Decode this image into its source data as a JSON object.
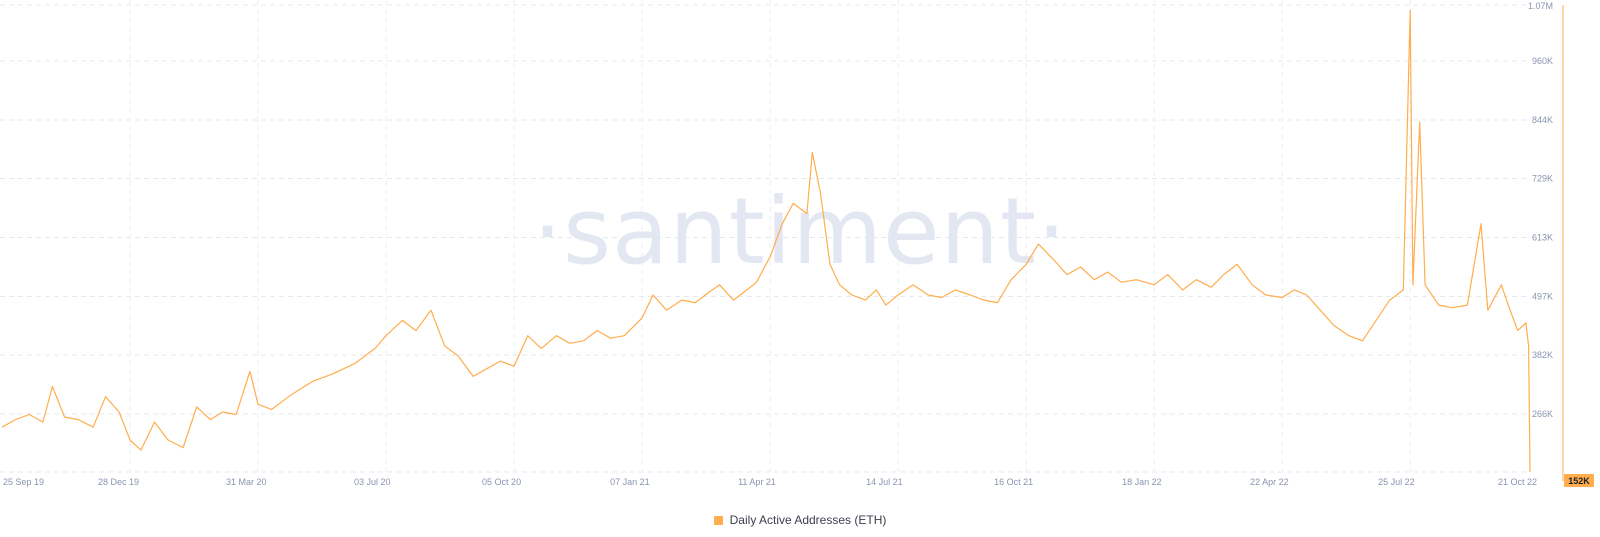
{
  "watermark": "·santiment·",
  "chart_data": {
    "type": "line",
    "series": [
      {
        "name": "Daily Active Addresses (ETH)",
        "color": "#ffad4d",
        "points": [
          [
            "2019-09-25",
            240000
          ],
          [
            "2019-10-05",
            255000
          ],
          [
            "2019-10-15",
            265000
          ],
          [
            "2019-10-25",
            250000
          ],
          [
            "2019-11-01",
            320000
          ],
          [
            "2019-11-10",
            260000
          ],
          [
            "2019-11-20",
            255000
          ],
          [
            "2019-12-01",
            240000
          ],
          [
            "2019-12-10",
            300000
          ],
          [
            "2019-12-20",
            270000
          ],
          [
            "2019-12-28",
            215000
          ],
          [
            "2020-01-05",
            195000
          ],
          [
            "2020-01-15",
            250000
          ],
          [
            "2020-01-25",
            215000
          ],
          [
            "2020-02-05",
            200000
          ],
          [
            "2020-02-15",
            280000
          ],
          [
            "2020-02-25",
            255000
          ],
          [
            "2020-03-05",
            270000
          ],
          [
            "2020-03-15",
            265000
          ],
          [
            "2020-03-25",
            350000
          ],
          [
            "2020-03-31",
            285000
          ],
          [
            "2020-04-10",
            275000
          ],
          [
            "2020-04-25",
            305000
          ],
          [
            "2020-05-10",
            330000
          ],
          [
            "2020-05-25",
            345000
          ],
          [
            "2020-06-10",
            365000
          ],
          [
            "2020-06-25",
            395000
          ],
          [
            "2020-07-03",
            420000
          ],
          [
            "2020-07-15",
            450000
          ],
          [
            "2020-07-25",
            430000
          ],
          [
            "2020-08-05",
            470000
          ],
          [
            "2020-08-15",
            400000
          ],
          [
            "2020-08-25",
            380000
          ],
          [
            "2020-09-05",
            340000
          ],
          [
            "2020-09-15",
            355000
          ],
          [
            "2020-09-25",
            370000
          ],
          [
            "2020-10-05",
            360000
          ],
          [
            "2020-10-15",
            420000
          ],
          [
            "2020-10-25",
            395000
          ],
          [
            "2020-11-05",
            420000
          ],
          [
            "2020-11-15",
            405000
          ],
          [
            "2020-11-25",
            410000
          ],
          [
            "2020-12-05",
            430000
          ],
          [
            "2020-12-15",
            415000
          ],
          [
            "2020-12-25",
            420000
          ],
          [
            "2021-01-07",
            455000
          ],
          [
            "2021-01-15",
            500000
          ],
          [
            "2021-01-25",
            470000
          ],
          [
            "2021-02-05",
            490000
          ],
          [
            "2021-02-15",
            485000
          ],
          [
            "2021-02-25",
            505000
          ],
          [
            "2021-03-05",
            520000
          ],
          [
            "2021-03-15",
            490000
          ],
          [
            "2021-03-25",
            510000
          ],
          [
            "2021-04-01",
            525000
          ],
          [
            "2021-04-11",
            575000
          ],
          [
            "2021-04-20",
            640000
          ],
          [
            "2021-04-28",
            680000
          ],
          [
            "2021-05-08",
            660000
          ],
          [
            "2021-05-12",
            780000
          ],
          [
            "2021-05-18",
            700000
          ],
          [
            "2021-05-25",
            560000
          ],
          [
            "2021-06-01",
            520000
          ],
          [
            "2021-06-10",
            500000
          ],
          [
            "2021-06-20",
            490000
          ],
          [
            "2021-06-28",
            510000
          ],
          [
            "2021-07-05",
            480000
          ],
          [
            "2021-07-14",
            500000
          ],
          [
            "2021-07-25",
            520000
          ],
          [
            "2021-08-05",
            500000
          ],
          [
            "2021-08-15",
            495000
          ],
          [
            "2021-08-25",
            510000
          ],
          [
            "2021-09-05",
            500000
          ],
          [
            "2021-09-15",
            490000
          ],
          [
            "2021-09-25",
            485000
          ],
          [
            "2021-10-05",
            530000
          ],
          [
            "2021-10-16",
            560000
          ],
          [
            "2021-10-25",
            600000
          ],
          [
            "2021-11-05",
            570000
          ],
          [
            "2021-11-15",
            540000
          ],
          [
            "2021-11-25",
            555000
          ],
          [
            "2021-12-05",
            530000
          ],
          [
            "2021-12-15",
            545000
          ],
          [
            "2021-12-25",
            525000
          ],
          [
            "2022-01-05",
            530000
          ],
          [
            "2022-01-18",
            520000
          ],
          [
            "2022-01-28",
            540000
          ],
          [
            "2022-02-08",
            510000
          ],
          [
            "2022-02-18",
            530000
          ],
          [
            "2022-03-01",
            515000
          ],
          [
            "2022-03-10",
            540000
          ],
          [
            "2022-03-20",
            560000
          ],
          [
            "2022-03-31",
            520000
          ],
          [
            "2022-04-10",
            500000
          ],
          [
            "2022-04-22",
            495000
          ],
          [
            "2022-05-01",
            510000
          ],
          [
            "2022-05-10",
            500000
          ],
          [
            "2022-05-20",
            470000
          ],
          [
            "2022-05-30",
            440000
          ],
          [
            "2022-06-10",
            420000
          ],
          [
            "2022-06-20",
            410000
          ],
          [
            "2022-06-30",
            450000
          ],
          [
            "2022-07-10",
            490000
          ],
          [
            "2022-07-20",
            510000
          ],
          [
            "2022-07-25",
            1060000
          ],
          [
            "2022-07-27",
            520000
          ],
          [
            "2022-08-01",
            840000
          ],
          [
            "2022-08-05",
            520000
          ],
          [
            "2022-08-15",
            480000
          ],
          [
            "2022-08-25",
            475000
          ],
          [
            "2022-09-05",
            480000
          ],
          [
            "2022-09-15",
            640000
          ],
          [
            "2022-09-20",
            470000
          ],
          [
            "2022-09-30",
            520000
          ],
          [
            "2022-10-05",
            480000
          ],
          [
            "2022-10-12",
            430000
          ],
          [
            "2022-10-18",
            445000
          ],
          [
            "2022-10-20",
            400000
          ],
          [
            "2022-10-21",
            152000
          ]
        ]
      }
    ],
    "x_ticks": [
      "25 Sep 19",
      "28 Dec 19",
      "31 Mar 20",
      "03 Jul 20",
      "05 Oct 20",
      "07 Jan 21",
      "11 Apr 21",
      "14 Jul 21",
      "16 Oct 21",
      "18 Jan 22",
      "22 Apr 22",
      "25 Jul 22",
      "21 Oct 22"
    ],
    "x_tick_dates": [
      "2019-09-25",
      "2019-12-28",
      "2020-03-31",
      "2020-07-03",
      "2020-10-05",
      "2021-01-07",
      "2021-04-11",
      "2021-07-14",
      "2021-10-16",
      "2022-01-18",
      "2022-04-22",
      "2022-07-25",
      "2022-10-21"
    ],
    "y_ticks": [
      "1.07M",
      "960K",
      "844K",
      "729K",
      "613K",
      "497K",
      "382K",
      "266K",
      "152K"
    ],
    "y_tick_values": [
      1070000,
      960000,
      844000,
      729000,
      613000,
      497000,
      382000,
      266000,
      152000
    ],
    "ylim": [
      152000,
      1070000
    ],
    "xlim": [
      "2019-09-25",
      "2022-10-21"
    ],
    "last_value_label": "152K",
    "grid": true,
    "legend_position": "bottom-center"
  }
}
